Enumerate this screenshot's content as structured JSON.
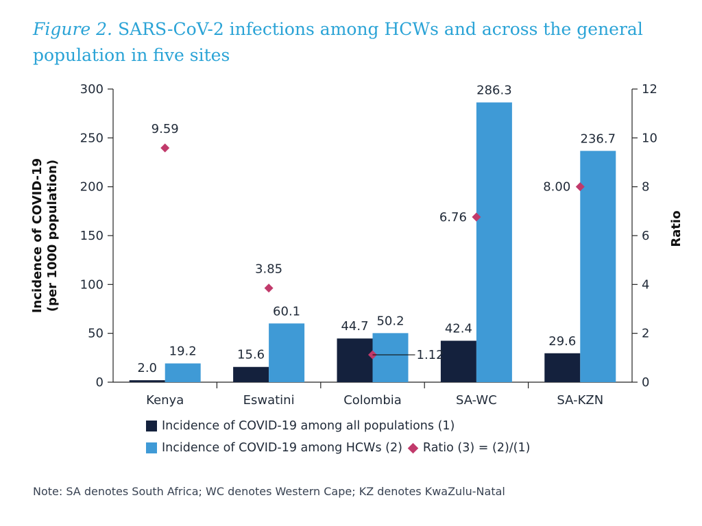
{
  "title": {
    "figure_label": "Figure 2.",
    "text": " SARS-CoV-2 infections among HCWs and across the general population in five sites"
  },
  "colors": {
    "all_populations": "#14213d",
    "hcws": "#3f9ad6",
    "ratio": "#c13a6b",
    "axis": "#222222"
  },
  "chart_data": {
    "type": "bar",
    "categories": [
      "Kenya",
      "Eswatini",
      "Colombia",
      "SA-WC",
      "SA-KZN"
    ],
    "series": [
      {
        "name": "Incidence of COVID-19 among all populations (1)",
        "values": [
          2.0,
          15.6,
          44.7,
          42.4,
          29.6
        ],
        "labels": [
          "2.0",
          "15.6",
          "44.7",
          "42.4",
          "29.6"
        ],
        "axis": "left"
      },
      {
        "name": "Incidence of COVID-19 among HCWs (2)",
        "values": [
          19.2,
          60.1,
          50.2,
          286.3,
          236.7
        ],
        "labels": [
          "19.2",
          "60.1",
          "50.2",
          "286.3",
          "236.7"
        ],
        "axis": "left"
      },
      {
        "name": "Ratio (3) = (2)/(1)",
        "type": "scatter",
        "values": [
          9.59,
          3.85,
          1.12,
          6.76,
          8.0
        ],
        "labels": [
          "9.59",
          "3.85",
          "1.12",
          "6.76",
          "8.00"
        ],
        "axis": "right"
      }
    ],
    "ylabel": "Incidence of COVID-19 (per 1000 population)",
    "ylabel_lines": [
      "Incidence of COVID-19",
      "(per 1000 population)"
    ],
    "y2label": "Ratio",
    "ylim": [
      0,
      300
    ],
    "y2lim": [
      0,
      12
    ],
    "yticks": [
      0,
      50,
      100,
      150,
      200,
      250,
      300
    ],
    "y2ticks": [
      0,
      2,
      4,
      6,
      8,
      10,
      12
    ],
    "grid": false,
    "legend_position": "bottom"
  },
  "legend": {
    "all_populations": "Incidence of COVID-19 among all populations (1)",
    "hcws": "Incidence of COVID-19 among HCWs (2)",
    "ratio": "Ratio (3) = (2)/(1)"
  },
  "note": "Note: SA denotes South Africa; WC denotes Western Cape; KZ denotes KwaZulu-Natal"
}
